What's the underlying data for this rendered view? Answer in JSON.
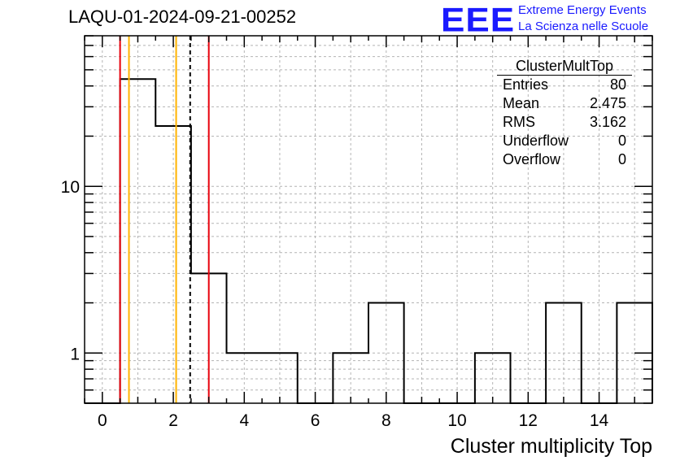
{
  "chart_data": {
    "type": "histogram",
    "title": "LAQU-01-2024-09-21-00252",
    "xlabel": "Cluster multiplicity Top",
    "ylabel": "",
    "xlim": [
      -0.5,
      15.5
    ],
    "ylim": [
      0.5,
      80
    ],
    "yscale": "log",
    "grid": true,
    "bin_edges": [
      -0.5,
      0.5,
      1.5,
      2.5,
      3.5,
      4.5,
      5.5,
      6.5,
      7.5,
      8.5,
      9.5,
      10.5,
      11.5,
      12.5,
      13.5,
      14.5,
      15.5
    ],
    "counts": [
      0,
      44,
      23,
      3,
      1,
      1,
      0,
      1,
      2,
      0,
      0,
      1,
      0,
      2,
      0,
      2
    ],
    "x_ticks": [
      0,
      2,
      4,
      6,
      8,
      10,
      12,
      14
    ],
    "y_ticks": [
      1,
      10
    ],
    "vertical_lines": [
      {
        "x": 0.5,
        "color": "#e8000b",
        "style": "solid"
      },
      {
        "x": 0.75,
        "color": "#ffb300",
        "style": "solid"
      },
      {
        "x": 2.08,
        "color": "#ffb300",
        "style": "solid"
      },
      {
        "x": 2.475,
        "color": "#000000",
        "style": "dashed"
      },
      {
        "x": 3.0,
        "color": "#e8000b",
        "style": "solid"
      }
    ],
    "stats_box": {
      "name": "ClusterMultTop",
      "rows": [
        {
          "label": "Entries",
          "value": "80"
        },
        {
          "label": "Mean",
          "value": "2.475"
        },
        {
          "label": "RMS",
          "value": "3.162"
        },
        {
          "label": "Underflow",
          "value": "0"
        },
        {
          "label": "Overflow",
          "value": "0"
        }
      ]
    }
  },
  "logo": {
    "mark": "EEE",
    "line1": "Extreme Energy Events",
    "line2": "La Scienza nelle Scuole",
    "color": "#1a1aff"
  }
}
